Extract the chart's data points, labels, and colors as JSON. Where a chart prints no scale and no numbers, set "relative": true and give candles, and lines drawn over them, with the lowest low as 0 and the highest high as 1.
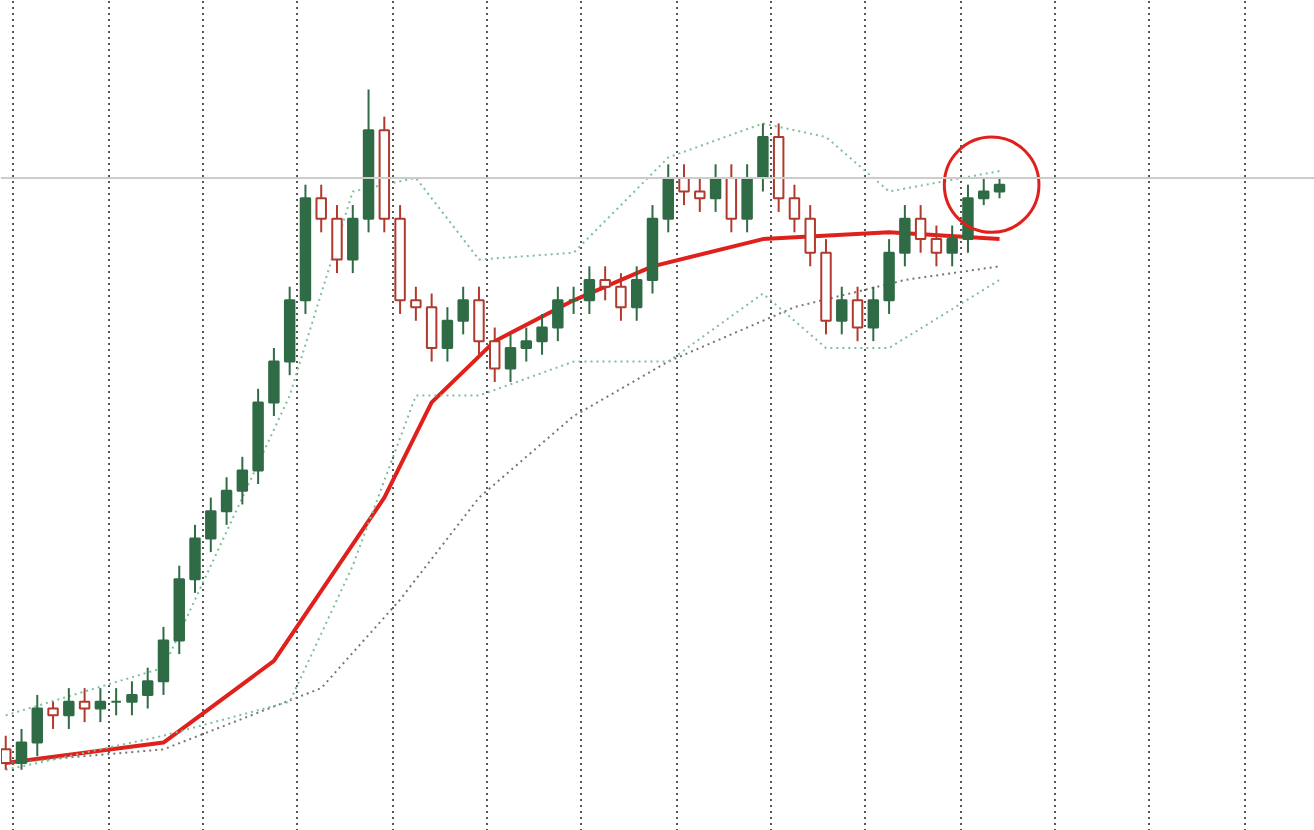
{
  "chart_data": {
    "type": "candlestick",
    "relative": true,
    "grid": "x",
    "colors": [
      "#b03a2e",
      "#2f6b45",
      "#2f6b45",
      "#b03a2e",
      "#2f6b45",
      "#b03a2e",
      "#2f6b45",
      "#2f6b45",
      "#2f6b45",
      "#2f6b45",
      "#2f6b45",
      "#2f6b45",
      "#2f6b45",
      "#2f6b45",
      "#2f6b45",
      "#2f6b45",
      "#2f6b45",
      "#2f6b45",
      "#2f6b45",
      "#2f6b45",
      "#b03a2e",
      "#b03a2e",
      "#2f6b45",
      "#2f6b45",
      "#b03a2e",
      "#b03a2e",
      "#b03a2e",
      "#b03a2e",
      "#2f6b45",
      "#2f6b45",
      "#b03a2e",
      "#b03a2e",
      "#2f6b45",
      "#2f6b45",
      "#2f6b45",
      "#2f6b45",
      "#2f6b45",
      "#2f6b45",
      "#b03a2e",
      "#b03a2e",
      "#2f6b45",
      "#2f6b45",
      "#2f6b45",
      "#b03a2e",
      "#b03a2e",
      "#2f6b45",
      "#b03a2e",
      "#2f6b45",
      "#2f6b45",
      "#b03a2e",
      "#b03a2e",
      "#b03a2e",
      "#b03a2e",
      "#2f6b45",
      "#b03a2e",
      "#2f6b45",
      "#2f6b45",
      "#2f6b45",
      "#b03a2e",
      "#b03a2e",
      "#2f6b45",
      "#2f6b45",
      "#2f6b45",
      "#2f6b45"
    ],
    "categories": [
      null,
      null,
      null,
      null,
      null,
      null,
      null,
      null,
      null,
      null,
      null,
      null,
      null,
      null,
      null,
      null,
      null,
      null,
      null,
      null,
      null,
      null,
      null,
      null,
      null,
      null,
      null,
      null,
      null,
      null,
      null,
      null,
      null,
      null,
      null,
      null,
      null,
      null,
      null,
      null,
      null,
      null,
      null,
      null,
      null,
      null,
      null,
      null,
      null,
      null,
      null,
      null,
      null,
      null,
      null,
      null,
      null,
      null,
      null,
      null,
      null,
      null,
      null,
      null
    ],
    "ohlc": [
      [
        0.03,
        0.05,
        0.0,
        0.01
      ],
      [
        0.01,
        0.06,
        0.0,
        0.04
      ],
      [
        0.04,
        0.11,
        0.02,
        0.09
      ],
      [
        0.09,
        0.1,
        0.06,
        0.08
      ],
      [
        0.08,
        0.12,
        0.06,
        0.1
      ],
      [
        0.1,
        0.12,
        0.07,
        0.09
      ],
      [
        0.09,
        0.12,
        0.07,
        0.1
      ],
      [
        0.1,
        0.12,
        0.08,
        0.1
      ],
      [
        0.1,
        0.13,
        0.08,
        0.11
      ],
      [
        0.11,
        0.15,
        0.09,
        0.13
      ],
      [
        0.13,
        0.21,
        0.11,
        0.19
      ],
      [
        0.19,
        0.3,
        0.17,
        0.28
      ],
      [
        0.28,
        0.36,
        0.26,
        0.34
      ],
      [
        0.34,
        0.4,
        0.32,
        0.38
      ],
      [
        0.38,
        0.43,
        0.36,
        0.41
      ],
      [
        0.41,
        0.46,
        0.39,
        0.44
      ],
      [
        0.44,
        0.56,
        0.42,
        0.54
      ],
      [
        0.54,
        0.62,
        0.52,
        0.6
      ],
      [
        0.6,
        0.71,
        0.58,
        0.69
      ],
      [
        0.69,
        0.86,
        0.67,
        0.84
      ],
      [
        0.84,
        0.86,
        0.79,
        0.81
      ],
      [
        0.81,
        0.83,
        0.73,
        0.75
      ],
      [
        0.75,
        0.83,
        0.73,
        0.81
      ],
      [
        0.81,
        1.0,
        0.79,
        0.94
      ],
      [
        0.94,
        0.96,
        0.79,
        0.81
      ],
      [
        0.81,
        0.83,
        0.67,
        0.69
      ],
      [
        0.69,
        0.71,
        0.66,
        0.68
      ],
      [
        0.68,
        0.7,
        0.6,
        0.62
      ],
      [
        0.62,
        0.68,
        0.6,
        0.66
      ],
      [
        0.66,
        0.71,
        0.64,
        0.69
      ],
      [
        0.69,
        0.71,
        0.61,
        0.63
      ],
      [
        0.63,
        0.65,
        0.57,
        0.59
      ],
      [
        0.59,
        0.64,
        0.57,
        0.62
      ],
      [
        0.62,
        0.65,
        0.6,
        0.63
      ],
      [
        0.63,
        0.67,
        0.61,
        0.65
      ],
      [
        0.65,
        0.71,
        0.63,
        0.69
      ],
      [
        0.69,
        0.71,
        0.67,
        0.69
      ],
      [
        0.69,
        0.74,
        0.67,
        0.72
      ],
      [
        0.72,
        0.74,
        0.69,
        0.71
      ],
      [
        0.71,
        0.73,
        0.66,
        0.68
      ],
      [
        0.68,
        0.74,
        0.66,
        0.72
      ],
      [
        0.72,
        0.83,
        0.7,
        0.81
      ],
      [
        0.81,
        0.89,
        0.79,
        0.87
      ],
      [
        0.87,
        0.89,
        0.83,
        0.85
      ],
      [
        0.85,
        0.87,
        0.82,
        0.84
      ],
      [
        0.84,
        0.89,
        0.82,
        0.87
      ],
      [
        0.87,
        0.89,
        0.79,
        0.81
      ],
      [
        0.81,
        0.89,
        0.79,
        0.87
      ],
      [
        0.87,
        0.95,
        0.85,
        0.93
      ],
      [
        0.93,
        0.95,
        0.82,
        0.84
      ],
      [
        0.84,
        0.86,
        0.79,
        0.81
      ],
      [
        0.81,
        0.83,
        0.74,
        0.76
      ],
      [
        0.76,
        0.78,
        0.64,
        0.66
      ],
      [
        0.66,
        0.71,
        0.64,
        0.69
      ],
      [
        0.69,
        0.71,
        0.63,
        0.65
      ],
      [
        0.65,
        0.71,
        0.63,
        0.69
      ],
      [
        0.69,
        0.78,
        0.67,
        0.76
      ],
      [
        0.76,
        0.83,
        0.74,
        0.81
      ],
      [
        0.81,
        0.83,
        0.76,
        0.78
      ],
      [
        0.78,
        0.8,
        0.74,
        0.76
      ],
      [
        0.76,
        0.8,
        0.74,
        0.78
      ],
      [
        0.78,
        0.86,
        0.76,
        0.84
      ],
      [
        0.84,
        0.87,
        0.83,
        0.85
      ],
      [
        0.85,
        0.87,
        0.84,
        0.86
      ]
    ],
    "series": [
      {
        "type": "line",
        "color": "#e0201b",
        "line_style": "solid",
        "values": [
          0.01,
          null,
          null,
          null,
          null,
          null,
          null,
          null,
          null,
          null,
          0.04,
          null,
          null,
          null,
          null,
          null,
          null,
          0.16,
          null,
          null,
          null,
          null,
          null,
          null,
          0.4,
          null,
          null,
          0.54,
          null,
          null,
          null,
          0.63,
          null,
          null,
          null,
          null,
          0.69,
          null,
          null,
          null,
          null,
          0.74,
          null,
          null,
          null,
          null,
          null,
          null,
          0.78,
          null,
          null,
          null,
          null,
          null,
          null,
          null,
          0.79,
          null,
          null,
          null,
          null,
          null,
          null,
          0.78
        ]
      },
      {
        "type": "line",
        "color": "#777777",
        "line_style": "dotted",
        "values": [
          0.01,
          null,
          null,
          null,
          null,
          null,
          null,
          null,
          null,
          null,
          0.03,
          null,
          null,
          null,
          null,
          null,
          null,
          null,
          null,
          null,
          0.12,
          null,
          null,
          null,
          null,
          0.25,
          null,
          null,
          null,
          null,
          0.4,
          null,
          null,
          null,
          null,
          null,
          0.52,
          null,
          null,
          null,
          null,
          null,
          0.6,
          null,
          null,
          null,
          null,
          null,
          null,
          null,
          0.68,
          null,
          null,
          null,
          null,
          null,
          null,
          0.72,
          null,
          null,
          null,
          null,
          null,
          0.74
        ]
      },
      {
        "type": "line",
        "color": "#7fbf9a",
        "line_style": "dotted",
        "values": [
          0.08,
          null,
          null,
          null,
          null,
          null,
          null,
          null,
          null,
          null,
          0.15,
          null,
          null,
          null,
          null,
          null,
          null,
          null,
          0.55,
          null,
          null,
          null,
          0.85,
          null,
          null,
          null,
          0.87,
          null,
          null,
          null,
          0.75,
          null,
          null,
          null,
          null,
          null,
          0.76,
          null,
          null,
          null,
          null,
          null,
          0.9,
          null,
          null,
          null,
          null,
          null,
          0.95,
          null,
          null,
          null,
          0.93,
          null,
          null,
          null,
          0.85,
          null,
          null,
          null,
          null,
          null,
          null,
          0.88
        ]
      },
      {
        "type": "line",
        "color": "#7fbf9a",
        "line_style": "dotted",
        "values": [
          0.0,
          null,
          null,
          null,
          null,
          null,
          null,
          null,
          null,
          null,
          0.05,
          null,
          null,
          null,
          null,
          null,
          null,
          null,
          0.1,
          null,
          null,
          null,
          0.3,
          null,
          null,
          null,
          0.55,
          null,
          null,
          null,
          0.55,
          null,
          null,
          null,
          null,
          null,
          0.6,
          null,
          null,
          null,
          null,
          null,
          0.6,
          null,
          null,
          null,
          null,
          null,
          0.7,
          null,
          null,
          null,
          0.62,
          null,
          null,
          null,
          0.62,
          null,
          null,
          null,
          null,
          null,
          null,
          0.72
        ]
      }
    ],
    "ref_lines": [
      {
        "axis": "y",
        "value": 0.87,
        "color": "#cccccc"
      }
    ]
  }
}
